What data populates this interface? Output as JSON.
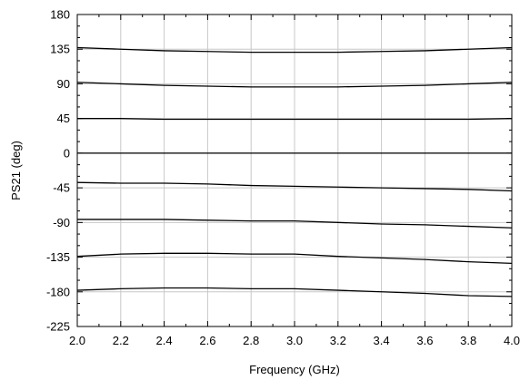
{
  "chart_data": {
    "type": "line",
    "title": "",
    "xlabel": "Frequency (GHz)",
    "ylabel": "PS21 (deg)",
    "xlim": [
      2.0,
      4.0
    ],
    "ylim": [
      -225,
      180
    ],
    "xticks": [
      "2.0",
      "2.2",
      "2.4",
      "2.6",
      "2.8",
      "3.0",
      "3.2",
      "3.4",
      "3.6",
      "3.8",
      "4.0"
    ],
    "yticks": [
      "180",
      "135",
      "90",
      "45",
      "0",
      "-45",
      "-90",
      "-135",
      "-180",
      "-225"
    ],
    "grid": true,
    "legend": "none",
    "line_color": "#000000",
    "grid_color": "#c8c8c8",
    "x": [
      2.0,
      2.2,
      2.4,
      2.6,
      2.8,
      3.0,
      3.2,
      3.4,
      3.6,
      3.8,
      4.0
    ],
    "series": [
      {
        "values": [
          137,
          135,
          133,
          132,
          131,
          131,
          131,
          132,
          133,
          135,
          137
        ]
      },
      {
        "values": [
          92,
          90,
          88,
          87,
          86,
          86,
          86,
          87,
          88,
          90,
          92
        ]
      },
      {
        "values": [
          45,
          45,
          44,
          44,
          44,
          44,
          44,
          44,
          44,
          44,
          45
        ]
      },
      {
        "values": [
          0,
          0,
          0,
          0,
          0,
          0,
          0,
          0,
          0,
          0,
          0
        ]
      },
      {
        "values": [
          -38,
          -39,
          -39,
          -40,
          -42,
          -43,
          -44,
          -45,
          -46,
          -47,
          -49
        ]
      },
      {
        "values": [
          -86,
          -86,
          -86,
          -87,
          -88,
          -88,
          -90,
          -92,
          -93,
          -95,
          -97
        ]
      },
      {
        "values": [
          -134,
          -131,
          -130,
          -130,
          -131,
          -131,
          -134,
          -136,
          -138,
          -141,
          -143
        ]
      },
      {
        "values": [
          -178,
          -176,
          -175,
          -175,
          -176,
          -176,
          -178,
          -180,
          -182,
          -185,
          -186
        ]
      }
    ]
  }
}
